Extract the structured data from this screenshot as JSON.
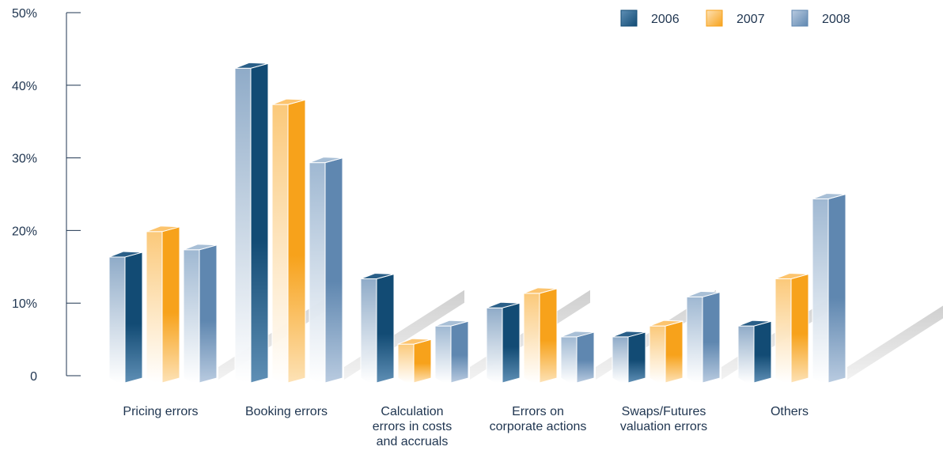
{
  "chart_data": {
    "type": "bar",
    "categories": [
      [
        "Pricing errors"
      ],
      [
        "Booking errors"
      ],
      [
        "Calculation",
        "errors in costs",
        "and accruals"
      ],
      [
        "Errors on",
        "corporate actions"
      ],
      [
        "Swaps/Futures",
        "valuation errors"
      ],
      [
        "Others"
      ]
    ],
    "series": [
      {
        "name": "2006",
        "values": [
          17,
          43,
          14,
          10,
          6,
          7.5
        ]
      },
      {
        "name": "2007",
        "values": [
          20.5,
          38,
          5,
          12,
          7.5,
          14
        ]
      },
      {
        "name": "2008",
        "values": [
          18,
          30,
          7.5,
          6,
          11.5,
          25
        ]
      }
    ],
    "yticks": [
      "0",
      "10%",
      "20%",
      "30%",
      "40%",
      "50%"
    ],
    "ylim": [
      0,
      50
    ],
    "grid": false,
    "legend_position": "top-right",
    "colors": {
      "2006": {
        "front": "#124b74",
        "front_light": "#5f8fb5",
        "side": "#8fabc8",
        "top": "#2a5f88"
      },
      "2007": {
        "front": "#f7a21b",
        "front_light": "#fde2b6",
        "side": "#fbc97a",
        "top": "#fcc46e"
      },
      "2008": {
        "front": "#5f87b0",
        "front_light": "#b9cbe0",
        "side": "#9fb8d2",
        "top": "#a8bfd6"
      },
      "axis": "#1f3550",
      "platform": "#d9d9d9"
    }
  }
}
